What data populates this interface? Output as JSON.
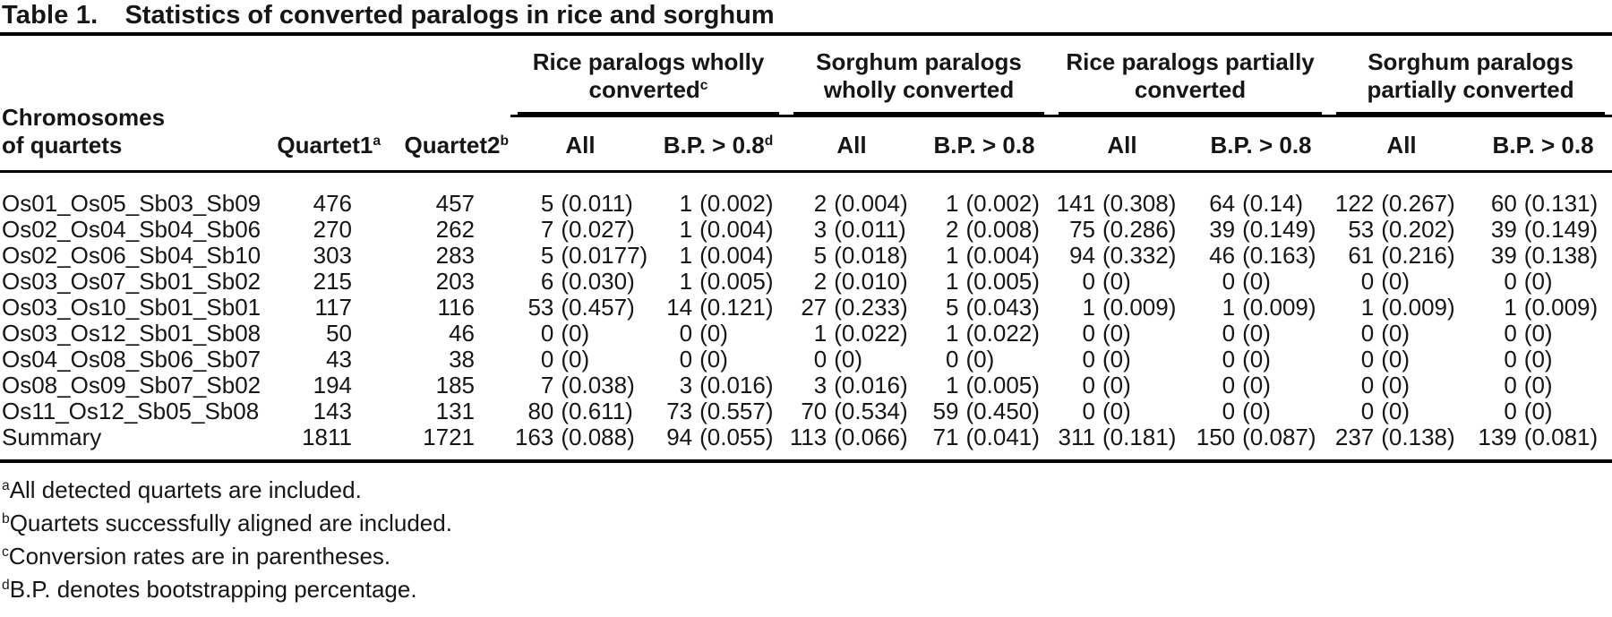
{
  "title": {
    "label": "Table 1.",
    "text": "Statistics of converted paralogs in rice and sorghum"
  },
  "header": {
    "chrom_line1": "Chromosomes",
    "chrom_line2": "of quartets",
    "quartet1": {
      "label": "Quartet1",
      "sup": "a"
    },
    "quartet2": {
      "label": "Quartet2",
      "sup": "b"
    },
    "groups": [
      {
        "line1": "Rice paralogs wholly",
        "line2": "converted",
        "sup": "c",
        "subs": [
          {
            "label": "All",
            "sup": ""
          },
          {
            "label": "B.P. > 0.8",
            "sup": "d"
          }
        ]
      },
      {
        "line1": "Sorghum paralogs",
        "line2": "wholly converted",
        "sup": "",
        "subs": [
          {
            "label": "All",
            "sup": ""
          },
          {
            "label": "B.P. > 0.8",
            "sup": ""
          }
        ]
      },
      {
        "line1": "Rice paralogs partially",
        "line2": "converted",
        "sup": "",
        "subs": [
          {
            "label": "All",
            "sup": ""
          },
          {
            "label": "B.P. > 0.8",
            "sup": ""
          }
        ]
      },
      {
        "line1": "Sorghum paralogs",
        "line2": "partially converted",
        "sup": "",
        "subs": [
          {
            "label": "All",
            "sup": ""
          },
          {
            "label": "B.P. > 0.8",
            "sup": ""
          }
        ]
      }
    ]
  },
  "rows": [
    {
      "chrom": "Os01_Os05_Sb03_Sb09",
      "q1": "476",
      "q2": "457",
      "vals": [
        [
          "5",
          "(0.011)"
        ],
        [
          "1",
          "(0.002)"
        ],
        [
          "2",
          "(0.004)"
        ],
        [
          "1",
          "(0.002)"
        ],
        [
          "141",
          "(0.308)"
        ],
        [
          "64",
          "(0.14)"
        ],
        [
          "122",
          "(0.267)"
        ],
        [
          "60",
          "(0.131)"
        ]
      ]
    },
    {
      "chrom": "Os02_Os04_Sb04_Sb06",
      "q1": "270",
      "q2": "262",
      "vals": [
        [
          "7",
          "(0.027)"
        ],
        [
          "1",
          "(0.004)"
        ],
        [
          "3",
          "(0.011)"
        ],
        [
          "2",
          "(0.008)"
        ],
        [
          "75",
          "(0.286)"
        ],
        [
          "39",
          "(0.149)"
        ],
        [
          "53",
          "(0.202)"
        ],
        [
          "39",
          "(0.149)"
        ]
      ]
    },
    {
      "chrom": "Os02_Os06_Sb04_Sb10",
      "q1": "303",
      "q2": "283",
      "vals": [
        [
          "5",
          "(0.0177)"
        ],
        [
          "1",
          "(0.004)"
        ],
        [
          "5",
          "(0.018)"
        ],
        [
          "1",
          "(0.004)"
        ],
        [
          "94",
          "(0.332)"
        ],
        [
          "46",
          "(0.163)"
        ],
        [
          "61",
          "(0.216)"
        ],
        [
          "39",
          "(0.138)"
        ]
      ]
    },
    {
      "chrom": "Os03_Os07_Sb01_Sb02",
      "q1": "215",
      "q2": "203",
      "vals": [
        [
          "6",
          "(0.030)"
        ],
        [
          "1",
          "(0.005)"
        ],
        [
          "2",
          "(0.010)"
        ],
        [
          "1",
          "(0.005)"
        ],
        [
          "0",
          "(0)"
        ],
        [
          "0",
          "(0)"
        ],
        [
          "0",
          "(0)"
        ],
        [
          "0",
          "(0)"
        ]
      ]
    },
    {
      "chrom": "Os03_Os10_Sb01_Sb01",
      "q1": "117",
      "q2": "116",
      "vals": [
        [
          "53",
          "(0.457)"
        ],
        [
          "14",
          "(0.121)"
        ],
        [
          "27",
          "(0.233)"
        ],
        [
          "5",
          "(0.043)"
        ],
        [
          "1",
          "(0.009)"
        ],
        [
          "1",
          "(0.009)"
        ],
        [
          "1",
          "(0.009)"
        ],
        [
          "1",
          "(0.009)"
        ]
      ]
    },
    {
      "chrom": "Os03_Os12_Sb01_Sb08",
      "q1": "50",
      "q2": "46",
      "vals": [
        [
          "0",
          "(0)"
        ],
        [
          "0",
          "(0)"
        ],
        [
          "1",
          "(0.022)"
        ],
        [
          "1",
          "(0.022)"
        ],
        [
          "0",
          "(0)"
        ],
        [
          "0",
          "(0)"
        ],
        [
          "0",
          "(0)"
        ],
        [
          "0",
          "(0)"
        ]
      ]
    },
    {
      "chrom": "Os04_Os08_Sb06_Sb07",
      "q1": "43",
      "q2": "38",
      "vals": [
        [
          "0",
          "(0)"
        ],
        [
          "0",
          "(0)"
        ],
        [
          "0",
          "(0)"
        ],
        [
          "0",
          "(0)"
        ],
        [
          "0",
          "(0)"
        ],
        [
          "0",
          "(0)"
        ],
        [
          "0",
          "(0)"
        ],
        [
          "0",
          "(0)"
        ]
      ]
    },
    {
      "chrom": "Os08_Os09_Sb07_Sb02",
      "q1": "194",
      "q2": "185",
      "vals": [
        [
          "7",
          "(0.038)"
        ],
        [
          "3",
          "(0.016)"
        ],
        [
          "3",
          "(0.016)"
        ],
        [
          "1",
          "(0.005)"
        ],
        [
          "0",
          "(0)"
        ],
        [
          "0",
          "(0)"
        ],
        [
          "0",
          "(0)"
        ],
        [
          "0",
          "(0)"
        ]
      ]
    },
    {
      "chrom": "Os11_Os12_Sb05_Sb08",
      "q1": "143",
      "q2": "131",
      "vals": [
        [
          "80",
          "(0.611)"
        ],
        [
          "73",
          "(0.557)"
        ],
        [
          "70",
          "(0.534)"
        ],
        [
          "59",
          "(0.450)"
        ],
        [
          "0",
          "(0)"
        ],
        [
          "0",
          "(0)"
        ],
        [
          "0",
          "(0)"
        ],
        [
          "0",
          "(0)"
        ]
      ]
    },
    {
      "chrom": "Summary",
      "q1": "1811",
      "q2": "1721",
      "vals": [
        [
          "163",
          "(0.088)"
        ],
        [
          "94",
          "(0.055)"
        ],
        [
          "113",
          "(0.066)"
        ],
        [
          "71",
          "(0.041)"
        ],
        [
          "311",
          "(0.181)"
        ],
        [
          "150",
          "(0.087)"
        ],
        [
          "237",
          "(0.138)"
        ],
        [
          "139",
          "(0.081)"
        ]
      ]
    }
  ],
  "footnotes": [
    {
      "sup": "a",
      "text": "All detected quartets are included."
    },
    {
      "sup": "b",
      "text": "Quartets successfully aligned are included."
    },
    {
      "sup": "c",
      "text": "Conversion rates are in parentheses."
    },
    {
      "sup": "d",
      "text": "B.P. denotes bootstrapping percentage."
    }
  ]
}
